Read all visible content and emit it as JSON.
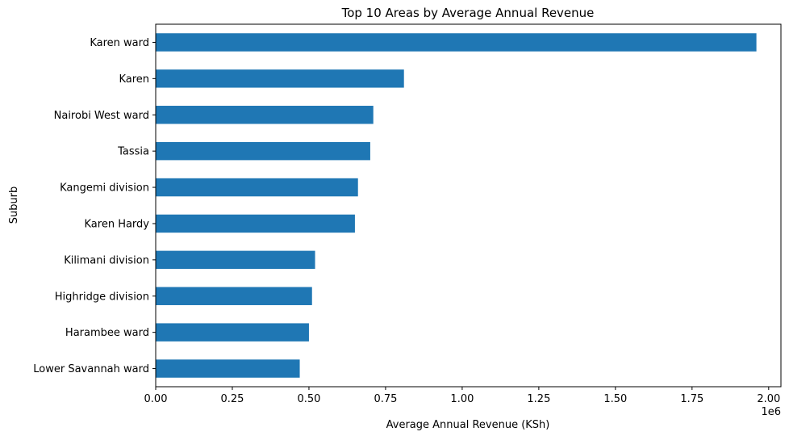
{
  "chart_data": {
    "type": "bar",
    "orientation": "horizontal",
    "title": "Top 10 Areas by Average Annual Revenue",
    "xlabel": "Average Annual Revenue (KSh)",
    "ylabel": "Suburb",
    "x_offset_label": "1e6",
    "xlim": [
      0,
      2.04
    ],
    "x_ticks": [
      0.0,
      0.25,
      0.5,
      0.75,
      1.0,
      1.25,
      1.5,
      1.75,
      2.0
    ],
    "x_tick_labels": [
      "0.00",
      "0.25",
      "0.50",
      "0.75",
      "1.00",
      "1.25",
      "1.50",
      "1.75",
      "2.00"
    ],
    "categories": [
      "Karen ward",
      "Karen",
      "Nairobi West ward",
      "Tassia",
      "Kangemi division",
      "Karen Hardy",
      "Kilimani division",
      "Highridge division",
      "Harambee ward",
      "Lower Savannah ward"
    ],
    "values": [
      1.96,
      0.81,
      0.71,
      0.7,
      0.66,
      0.65,
      0.52,
      0.51,
      0.5,
      0.47
    ],
    "bar_color": "#1f77b4",
    "grid": false,
    "legend": "none"
  }
}
